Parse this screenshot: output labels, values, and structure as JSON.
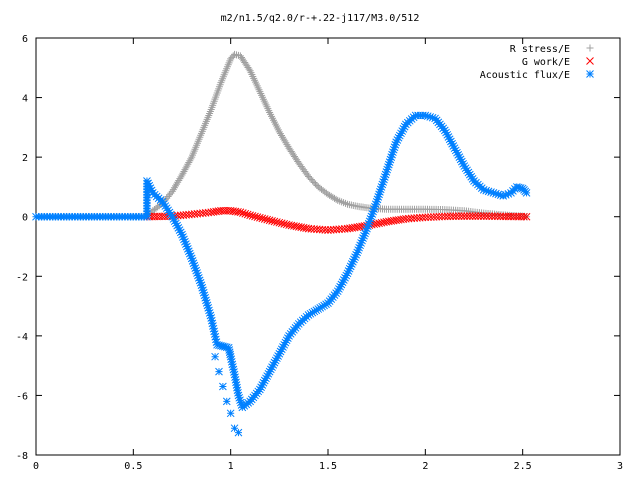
{
  "chart_data": {
    "type": "scatter",
    "title": "m2/n1.5/q2.0/r-+.22-j117/M3.0/512",
    "xlabel": "",
    "ylabel": "",
    "xlim": [
      0,
      3
    ],
    "ylim": [
      -8,
      6
    ],
    "xticks": [
      "0",
      "0.5",
      "1",
      "1.5",
      "2",
      "2.5",
      "3"
    ],
    "yticks": [
      "-8",
      "-6",
      "-4",
      "-2",
      "0",
      "2",
      "4",
      "6"
    ],
    "grid": false,
    "legend_position": "top-right",
    "series": [
      {
        "name": "R stress/E",
        "marker": "+",
        "color": "#a0a0a0",
        "points": [
          [
            0.57,
            0.0
          ],
          [
            0.6,
            0.2
          ],
          [
            0.65,
            0.45
          ],
          [
            0.7,
            0.85
          ],
          [
            0.75,
            1.4
          ],
          [
            0.8,
            2.0
          ],
          [
            0.85,
            2.8
          ],
          [
            0.9,
            3.6
          ],
          [
            0.95,
            4.5
          ],
          [
            1.0,
            5.3
          ],
          [
            1.02,
            5.45
          ],
          [
            1.05,
            5.4
          ],
          [
            1.1,
            4.9
          ],
          [
            1.15,
            4.2
          ],
          [
            1.2,
            3.5
          ],
          [
            1.25,
            2.85
          ],
          [
            1.3,
            2.3
          ],
          [
            1.35,
            1.8
          ],
          [
            1.4,
            1.35
          ],
          [
            1.45,
            1.0
          ],
          [
            1.5,
            0.75
          ],
          [
            1.55,
            0.55
          ],
          [
            1.6,
            0.42
          ],
          [
            1.65,
            0.35
          ],
          [
            1.7,
            0.3
          ],
          [
            1.75,
            0.27
          ],
          [
            1.8,
            0.25
          ],
          [
            1.9,
            0.25
          ],
          [
            2.0,
            0.25
          ],
          [
            2.1,
            0.24
          ],
          [
            2.2,
            0.2
          ],
          [
            2.3,
            0.12
          ],
          [
            2.4,
            0.06
          ],
          [
            2.5,
            0.02
          ],
          [
            2.52,
            0.0
          ]
        ]
      },
      {
        "name": "G work/E",
        "marker": "x",
        "color": "#ff0000",
        "points": [
          [
            0.57,
            0.0
          ],
          [
            0.7,
            0.02
          ],
          [
            0.8,
            0.08
          ],
          [
            0.9,
            0.15
          ],
          [
            0.95,
            0.2
          ],
          [
            1.0,
            0.2
          ],
          [
            1.05,
            0.15
          ],
          [
            1.1,
            0.05
          ],
          [
            1.2,
            -0.12
          ],
          [
            1.3,
            -0.28
          ],
          [
            1.4,
            -0.4
          ],
          [
            1.5,
            -0.45
          ],
          [
            1.6,
            -0.4
          ],
          [
            1.7,
            -0.3
          ],
          [
            1.8,
            -0.17
          ],
          [
            1.9,
            -0.07
          ],
          [
            2.0,
            -0.02
          ],
          [
            2.1,
            0.01
          ],
          [
            2.2,
            0.02
          ],
          [
            2.3,
            0.02
          ],
          [
            2.4,
            0.01
          ],
          [
            2.52,
            0.0
          ]
        ]
      },
      {
        "name": "Acoustic flux/E",
        "marker": "*",
        "color": "#0080ff",
        "points": [
          [
            0.0,
            0.0
          ],
          [
            0.1,
            0.0
          ],
          [
            0.2,
            0.0
          ],
          [
            0.3,
            0.0
          ],
          [
            0.4,
            0.0
          ],
          [
            0.5,
            0.0
          ],
          [
            0.57,
            0.0
          ],
          [
            0.57,
            1.2
          ],
          [
            0.6,
            0.8
          ],
          [
            0.65,
            0.5
          ],
          [
            0.7,
            0.0
          ],
          [
            0.75,
            -0.6
          ],
          [
            0.8,
            -1.4
          ],
          [
            0.85,
            -2.3
          ],
          [
            0.9,
            -3.4
          ],
          [
            0.93,
            -4.3
          ],
          [
            0.96,
            -4.35
          ],
          [
            0.99,
            -4.4
          ],
          [
            1.0,
            -4.7
          ],
          [
            1.02,
            -5.3
          ],
          [
            1.04,
            -6.0
          ],
          [
            1.06,
            -6.4
          ],
          [
            1.08,
            -6.3
          ],
          [
            1.1,
            -6.2
          ],
          [
            1.15,
            -5.8
          ],
          [
            1.2,
            -5.2
          ],
          [
            1.25,
            -4.6
          ],
          [
            1.3,
            -4.0
          ],
          [
            1.35,
            -3.6
          ],
          [
            1.4,
            -3.3
          ],
          [
            1.45,
            -3.1
          ],
          [
            1.5,
            -2.9
          ],
          [
            1.55,
            -2.5
          ],
          [
            1.6,
            -1.9
          ],
          [
            1.65,
            -1.2
          ],
          [
            1.7,
            -0.4
          ],
          [
            1.75,
            0.5
          ],
          [
            1.8,
            1.5
          ],
          [
            1.85,
            2.5
          ],
          [
            1.9,
            3.1
          ],
          [
            1.95,
            3.4
          ],
          [
            2.0,
            3.4
          ],
          [
            2.05,
            3.3
          ],
          [
            2.1,
            2.9
          ],
          [
            2.15,
            2.3
          ],
          [
            2.2,
            1.7
          ],
          [
            2.25,
            1.2
          ],
          [
            2.3,
            0.9
          ],
          [
            2.35,
            0.8
          ],
          [
            2.4,
            0.7
          ],
          [
            2.44,
            0.8
          ],
          [
            2.47,
            1.0
          ],
          [
            2.5,
            0.95
          ],
          [
            2.52,
            0.8
          ]
        ]
      },
      {
        "name": "",
        "marker": "*",
        "color": "#0080ff",
        "points": [
          [
            0.92,
            -4.7
          ],
          [
            0.94,
            -5.2
          ],
          [
            0.96,
            -5.7
          ],
          [
            0.98,
            -6.2
          ],
          [
            1.0,
            -6.6
          ],
          [
            1.02,
            -7.1
          ],
          [
            1.04,
            -7.25
          ]
        ]
      }
    ]
  }
}
